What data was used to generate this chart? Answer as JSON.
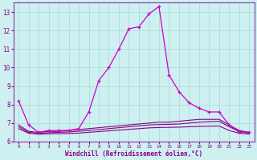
{
  "xlabel": "Windchill (Refroidissement éolien,°C)",
  "bg_color": "#cff0f0",
  "grid_color": "#aadddd",
  "line_color": "#880088",
  "line_color2": "#cc00cc",
  "spine_color": "#8833aa",
  "xlim": [
    -0.5,
    23.5
  ],
  "ylim": [
    6,
    13.5
  ],
  "yticks": [
    6,
    7,
    8,
    9,
    10,
    11,
    12,
    13
  ],
  "xticks": [
    0,
    1,
    2,
    3,
    4,
    5,
    6,
    7,
    8,
    9,
    10,
    11,
    12,
    13,
    14,
    15,
    16,
    17,
    18,
    19,
    20,
    21,
    22,
    23
  ],
  "main_x": [
    0,
    1,
    2,
    3,
    4,
    5,
    6,
    7,
    8,
    9,
    10,
    11,
    12,
    13,
    14,
    15,
    16,
    17,
    18,
    19,
    20,
    21,
    22,
    23
  ],
  "main_y": [
    8.2,
    6.9,
    6.5,
    6.6,
    6.6,
    6.6,
    6.7,
    7.6,
    9.3,
    10.0,
    11.0,
    12.1,
    12.2,
    12.9,
    13.3,
    9.6,
    8.7,
    8.1,
    7.8,
    7.6,
    7.6,
    6.9,
    6.5,
    6.5
  ],
  "flat1_x": [
    0,
    1,
    2,
    3,
    4,
    5,
    6,
    7,
    8,
    9,
    10,
    11,
    12,
    13,
    14,
    15,
    16,
    17,
    18,
    19,
    20,
    21,
    22,
    23
  ],
  "flat1_y": [
    6.9,
    6.55,
    6.5,
    6.55,
    6.55,
    6.6,
    6.65,
    6.7,
    6.75,
    6.8,
    6.85,
    6.9,
    6.95,
    7.0,
    7.05,
    7.05,
    7.1,
    7.15,
    7.2,
    7.2,
    7.2,
    6.9,
    6.6,
    6.5
  ],
  "flat2_x": [
    0,
    1,
    2,
    3,
    4,
    5,
    6,
    7,
    8,
    9,
    10,
    11,
    12,
    13,
    14,
    15,
    16,
    17,
    18,
    19,
    20,
    21,
    22,
    23
  ],
  "flat2_y": [
    6.8,
    6.5,
    6.45,
    6.48,
    6.5,
    6.52,
    6.56,
    6.6,
    6.65,
    6.7,
    6.75,
    6.8,
    6.85,
    6.9,
    6.92,
    6.93,
    6.95,
    7.0,
    7.05,
    7.08,
    7.1,
    6.8,
    6.55,
    6.45
  ],
  "flat3_x": [
    0,
    1,
    2,
    3,
    4,
    5,
    6,
    7,
    8,
    9,
    10,
    11,
    12,
    13,
    14,
    15,
    16,
    17,
    18,
    19,
    20,
    21,
    22,
    23
  ],
  "flat3_y": [
    6.7,
    6.45,
    6.4,
    6.42,
    6.43,
    6.44,
    6.46,
    6.5,
    6.54,
    6.58,
    6.62,
    6.66,
    6.7,
    6.74,
    6.76,
    6.77,
    6.78,
    6.8,
    6.82,
    6.83,
    6.84,
    6.6,
    6.45,
    6.4
  ],
  "tick_color": "#880088",
  "label_color": "#880088"
}
